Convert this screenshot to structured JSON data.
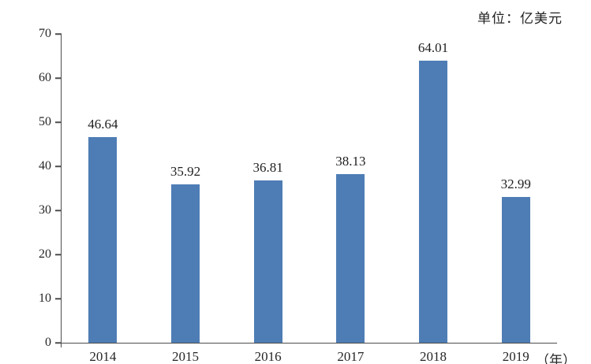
{
  "unit_label": "单位：亿美元",
  "colors": {
    "bar": "#4e7db5",
    "axis": "#4d4d4d",
    "text": "#1f1f1f"
  },
  "chart_data": {
    "type": "bar",
    "categories": [
      "2014",
      "2015",
      "2016",
      "2017",
      "2018",
      "2019"
    ],
    "values": [
      46.64,
      35.92,
      36.81,
      38.13,
      64.01,
      32.99
    ],
    "value_labels": [
      "46.64",
      "35.92",
      "36.81",
      "38.13",
      "64.01",
      "32.99"
    ],
    "title": "",
    "xlabel": "（年）",
    "ylabel": "",
    "unit": "单位：亿美元",
    "ylim": [
      0,
      70
    ],
    "yticks": [
      0,
      10,
      20,
      30,
      40,
      50,
      60,
      70
    ],
    "grid": false,
    "legend": false,
    "bar_color": "#4e7db5"
  }
}
